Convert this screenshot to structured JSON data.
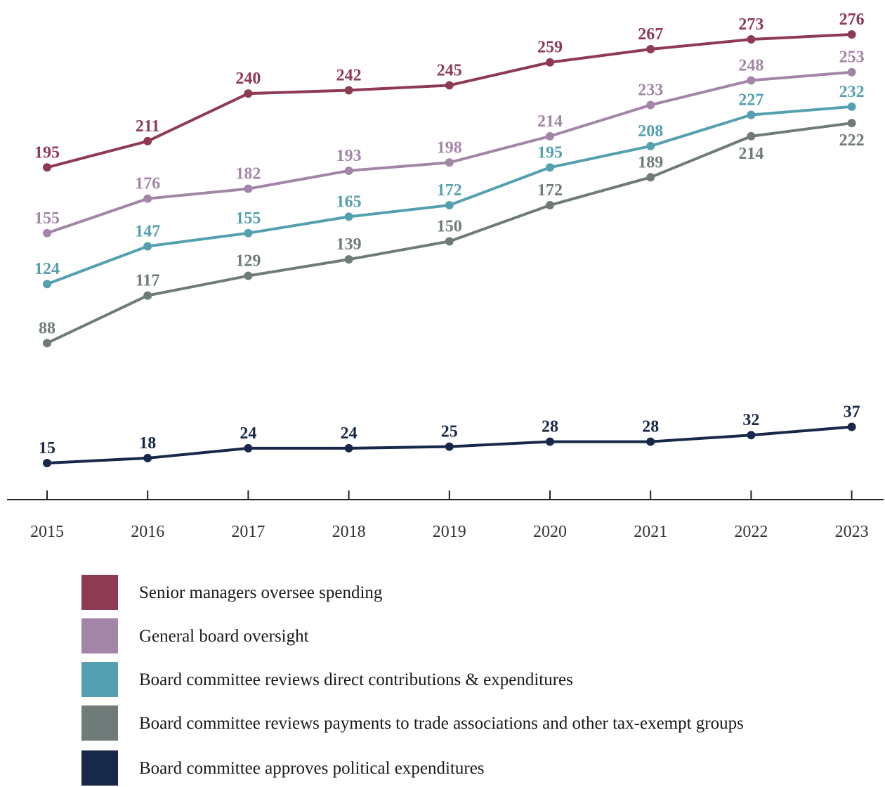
{
  "chart_data": {
    "type": "line",
    "title": "",
    "xlabel": "",
    "ylabel": "",
    "x": [
      "2015",
      "2016",
      "2017",
      "2018",
      "2019",
      "2020",
      "2021",
      "2022",
      "2023"
    ],
    "ylim": [
      0,
      290
    ],
    "grid": false,
    "legend_placement": "bottom",
    "series": [
      {
        "name": "Senior managers oversee spending",
        "color": "#8e3a52",
        "values": [
          195,
          211,
          240,
          242,
          245,
          259,
          267,
          273,
          276
        ]
      },
      {
        "name": "General board oversight",
        "color": "#a385a8",
        "values": [
          155,
          176,
          182,
          193,
          198,
          214,
          233,
          248,
          253
        ]
      },
      {
        "name": "Board committee reviews direct contributions & expenditures",
        "color": "#55a0b0",
        "values": [
          124,
          147,
          155,
          165,
          172,
          195,
          208,
          227,
          232
        ]
      },
      {
        "name": "Board committee reviews payments to trade associations and other tax-exempt groups",
        "color": "#6e7b78",
        "values": [
          88,
          117,
          129,
          139,
          150,
          172,
          189,
          214,
          222
        ]
      },
      {
        "name": "Board committee approves political expenditures",
        "color": "#18284a",
        "values": [
          15,
          18,
          24,
          24,
          25,
          28,
          28,
          32,
          37
        ]
      }
    ]
  }
}
